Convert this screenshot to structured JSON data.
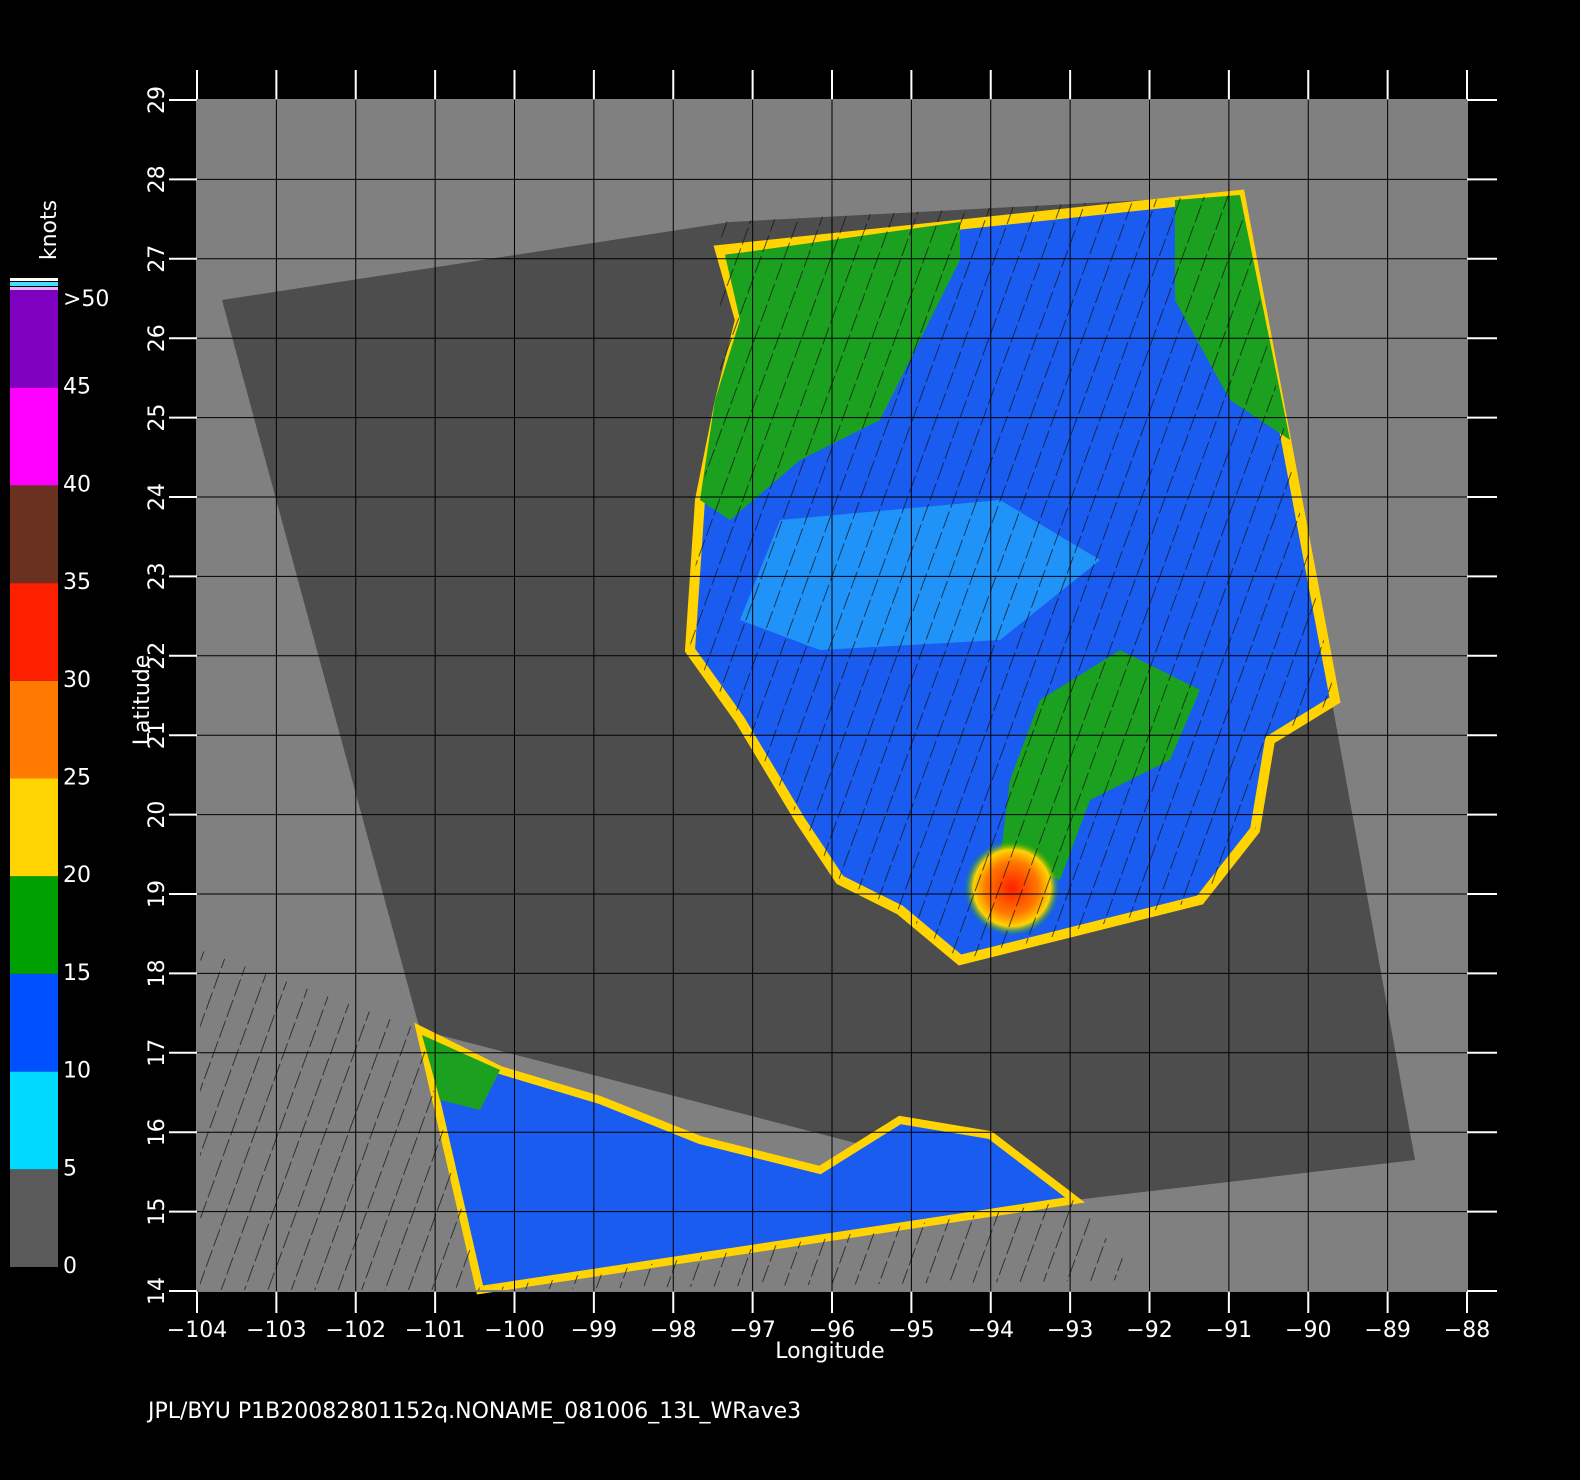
{
  "map": {
    "xlabel": "Longitude",
    "ylabel": "Latitude",
    "xlim": [
      -104,
      -88
    ],
    "ylim": [
      14,
      29
    ],
    "xticks": [
      {
        "value": -104,
        "label": "−104"
      },
      {
        "value": -103,
        "label": "−103"
      },
      {
        "value": -102,
        "label": "−102"
      },
      {
        "value": -101,
        "label": "−101"
      },
      {
        "value": -100,
        "label": "−100"
      },
      {
        "value": -99,
        "label": "−99"
      },
      {
        "value": -98,
        "label": "−98"
      },
      {
        "value": -97,
        "label": "−97"
      },
      {
        "value": -96,
        "label": "−96"
      },
      {
        "value": -95,
        "label": "−95"
      },
      {
        "value": -94,
        "label": "−94"
      },
      {
        "value": -93,
        "label": "−93"
      },
      {
        "value": -92,
        "label": "−92"
      },
      {
        "value": -91,
        "label": "−91"
      },
      {
        "value": -90,
        "label": "−90"
      },
      {
        "value": -89,
        "label": "−89"
      },
      {
        "value": -88,
        "label": "−88"
      }
    ],
    "yticks": [
      14,
      15,
      16,
      17,
      18,
      19,
      20,
      21,
      22,
      23,
      24,
      25,
      26,
      27,
      28,
      29
    ],
    "grid": true
  },
  "colorbar": {
    "title": "knots",
    "lim": [
      0,
      50
    ],
    "ticks": [
      0,
      5,
      10,
      15,
      20,
      25,
      30,
      35,
      40,
      45,
      {
        "value": 50,
        "label": ">50"
      }
    ],
    "colors": [
      "#5a5a5a",
      "#00d8ff",
      "#0050ff",
      "#00a000",
      "#ffd400",
      "#ff7a00",
      "#ff2000",
      "#6a3020",
      "#ff00ff",
      "#8000c0"
    ]
  },
  "footer": "JPL/BYU  P1B20082801152q.NONAME_081006_13L_WRave3"
}
